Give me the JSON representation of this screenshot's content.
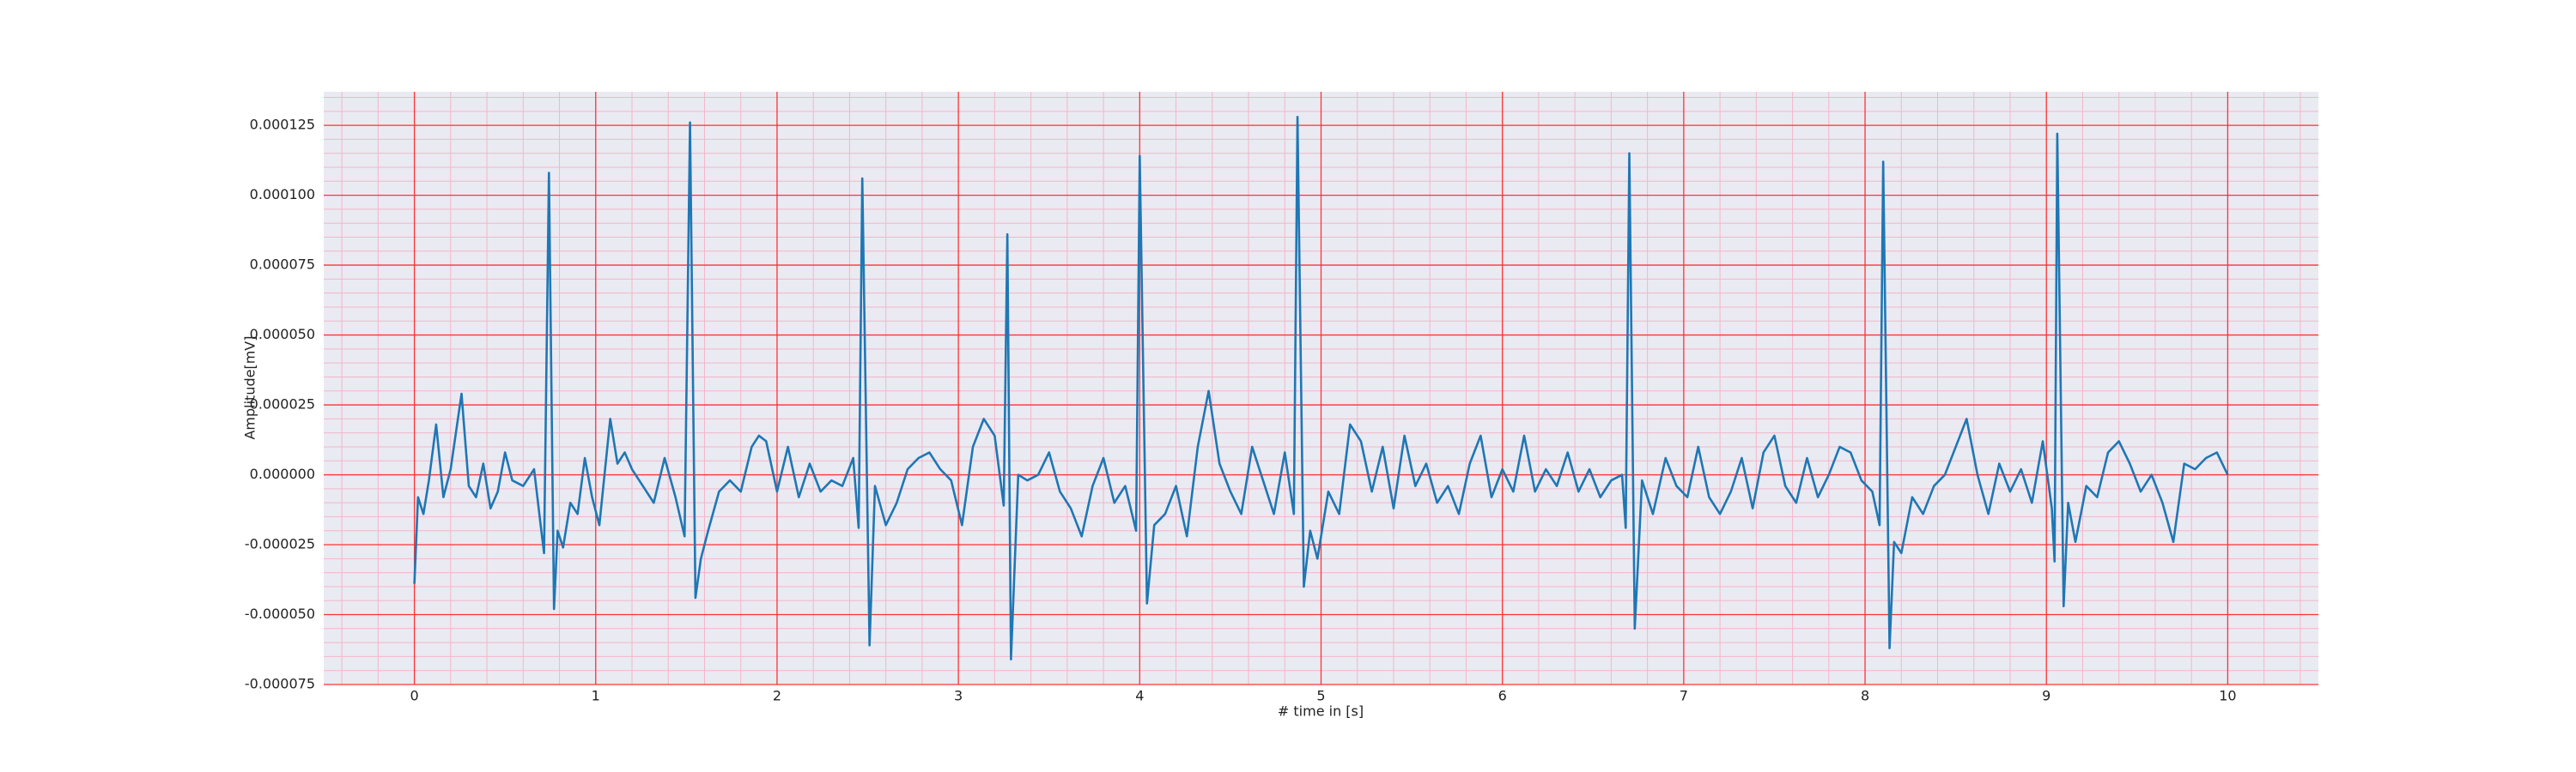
{
  "chart_data": {
    "type": "line",
    "xlabel": "# time in [s]",
    "ylabel": "Amplitude[mV]",
    "xlim": [
      -0.5,
      10.5
    ],
    "ylim": [
      -7.5e-05,
      0.000137
    ],
    "xticks": [
      0,
      1,
      2,
      3,
      4,
      5,
      6,
      7,
      8,
      9,
      10
    ],
    "yticks": [
      {
        "value": -7.5e-05,
        "label": "-0.000075"
      },
      {
        "value": -5e-05,
        "label": "-0.000050"
      },
      {
        "value": -2.5e-05,
        "label": "-0.000025"
      },
      {
        "value": 0,
        "label": "0.000000"
      },
      {
        "value": 2.5e-05,
        "label": "0.000025"
      },
      {
        "value": 5e-05,
        "label": "0.000050"
      },
      {
        "value": 7.5e-05,
        "label": "0.000075"
      },
      {
        "value": 0.0001,
        "label": "0.000100"
      },
      {
        "value": 0.000125,
        "label": "0.000125"
      }
    ],
    "xminorticks": [
      -0.4,
      -0.2,
      0.2,
      0.4,
      0.6,
      0.8,
      1.2,
      1.4,
      1.6,
      1.8,
      2.2,
      2.4,
      2.6,
      2.8,
      3.2,
      3.4,
      3.6,
      3.8,
      4.2,
      4.4,
      4.6,
      4.8,
      5.2,
      5.4,
      5.6,
      5.8,
      6.2,
      6.4,
      6.6,
      6.8,
      7.2,
      7.4,
      7.6,
      7.8,
      8.2,
      8.4,
      8.6,
      8.8,
      9.2,
      9.4,
      9.6,
      9.8,
      10.2,
      10.4
    ],
    "yminorticks": [
      -7e-05,
      -6.5e-05,
      -6e-05,
      -5.5e-05,
      -4.5e-05,
      -4e-05,
      -3.5e-05,
      -3e-05,
      -2e-05,
      -1.5e-05,
      -1e-05,
      -5e-06,
      5e-06,
      1e-05,
      1.5e-05,
      2e-05,
      3e-05,
      3.5e-05,
      4e-05,
      4.5e-05,
      5.5e-05,
      6e-05,
      6.5e-05,
      7e-05,
      8e-05,
      8.5e-05,
      9e-05,
      9.5e-05,
      0.000105,
      0.00011,
      0.000115,
      0.00012,
      0.00013,
      0.000135
    ],
    "grid": true,
    "major_grid_color": "#ff3333",
    "minor_grid_color": "#f4b6c8",
    "background": "#eaeaf2",
    "series": [
      {
        "color": "#1f77b4",
        "x": [
          0,
          0.02,
          0.05,
          0.08,
          0.12,
          0.16,
          0.2,
          0.26,
          0.3,
          0.34,
          0.38,
          0.42,
          0.46,
          0.5,
          0.54,
          0.6,
          0.66,
          0.7,
          0.715,
          0.742,
          0.77,
          0.79,
          0.82,
          0.86,
          0.9,
          0.94,
          0.98,
          1.02,
          1.08,
          1.12,
          1.16,
          1.2,
          1.26,
          1.32,
          1.38,
          1.44,
          1.49,
          1.52,
          1.55,
          1.58,
          1.62,
          1.68,
          1.74,
          1.8,
          1.86,
          1.9,
          1.94,
          2,
          2.06,
          2.12,
          2.18,
          2.24,
          2.3,
          2.36,
          2.42,
          2.45,
          2.47,
          2.51,
          2.54,
          2.6,
          2.66,
          2.72,
          2.78,
          2.84,
          2.9,
          2.96,
          3.02,
          3.08,
          3.14,
          3.2,
          3.25,
          3.27,
          3.29,
          3.33,
          3.38,
          3.44,
          3.5,
          3.56,
          3.62,
          3.68,
          3.74,
          3.8,
          3.86,
          3.92,
          3.98,
          4,
          4.04,
          4.08,
          4.14,
          4.2,
          4.26,
          4.32,
          4.38,
          4.44,
          4.5,
          4.56,
          4.62,
          4.68,
          4.74,
          4.8,
          4.85,
          4.87,
          4.905,
          4.94,
          4.98,
          5.04,
          5.1,
          5.16,
          5.22,
          5.28,
          5.34,
          5.4,
          5.46,
          5.52,
          5.58,
          5.64,
          5.7,
          5.76,
          5.82,
          5.88,
          5.94,
          6,
          6.06,
          6.12,
          6.18,
          6.24,
          6.3,
          6.36,
          6.42,
          6.48,
          6.54,
          6.6,
          6.66,
          6.68,
          6.7,
          6.73,
          6.77,
          6.83,
          6.9,
          6.96,
          7.02,
          7.08,
          7.14,
          7.2,
          7.26,
          7.32,
          7.38,
          7.44,
          7.5,
          7.56,
          7.62,
          7.68,
          7.74,
          7.8,
          7.86,
          7.92,
          7.98,
          8.04,
          8.08,
          8.1,
          8.135,
          8.16,
          8.2,
          8.26,
          8.32,
          8.38,
          8.44,
          8.5,
          8.56,
          8.62,
          8.68,
          8.74,
          8.8,
          8.86,
          8.92,
          8.98,
          9.03,
          9.045,
          9.06,
          9.095,
          9.12,
          9.16,
          9.22,
          9.28,
          9.34,
          9.4,
          9.46,
          9.52,
          9.58,
          9.64,
          9.7,
          9.76,
          9.82,
          9.88,
          9.94,
          10
        ],
        "values": [
          -3.9e-05,
          -8e-06,
          -1.4e-05,
          -2e-06,
          1.8e-05,
          -8e-06,
          2e-06,
          2.9e-05,
          -4e-06,
          -8e-06,
          4e-06,
          -1.2e-05,
          -6e-06,
          8e-06,
          -2e-06,
          -4e-06,
          2e-06,
          -2e-05,
          -2.8e-05,
          0.000108,
          -4.8e-05,
          -2e-05,
          -2.6e-05,
          -1e-05,
          -1.4e-05,
          6e-06,
          -8e-06,
          -1.8e-05,
          2e-05,
          4e-06,
          8e-06,
          2e-06,
          -4e-06,
          -1e-05,
          6e-06,
          -8e-06,
          -2.2e-05,
          0.000126,
          -4.4e-05,
          -3e-05,
          -2e-05,
          -6e-06,
          -2e-06,
          -6e-06,
          1e-05,
          1.4e-05,
          1.2e-05,
          -6e-06,
          1e-05,
          -8e-06,
          4e-06,
          -6e-06,
          -2e-06,
          -4e-06,
          6e-06,
          -1.9e-05,
          0.000106,
          -6.1e-05,
          -4e-06,
          -1.8e-05,
          -1e-05,
          2e-06,
          6e-06,
          8e-06,
          2e-06,
          -2e-06,
          -1.8e-05,
          1e-05,
          2e-05,
          1.4e-05,
          -1.1e-05,
          8.6e-05,
          -6.6e-05,
          0,
          -2e-06,
          0,
          8e-06,
          -6e-06,
          -1.2e-05,
          -2.2e-05,
          -4e-06,
          6e-06,
          -1e-05,
          -4e-06,
          -2e-05,
          0.000114,
          -4.6e-05,
          -1.8e-05,
          -1.4e-05,
          -4e-06,
          -2.2e-05,
          1e-05,
          3e-05,
          4e-06,
          -6e-06,
          -1.4e-05,
          1e-05,
          -2e-06,
          -1.4e-05,
          8e-06,
          -1.4e-05,
          0.000128,
          -4e-05,
          -2e-05,
          -3e-05,
          -6e-06,
          -1.4e-05,
          1.8e-05,
          1.2e-05,
          -6e-06,
          1e-05,
          -1.2e-05,
          1.4e-05,
          -4e-06,
          4e-06,
          -1e-05,
          -4e-06,
          -1.4e-05,
          4e-06,
          1.4e-05,
          -8e-06,
          2e-06,
          -6e-06,
          1.4e-05,
          -6e-06,
          2e-06,
          -4e-06,
          8e-06,
          -6e-06,
          2e-06,
          -8e-06,
          -2e-06,
          0,
          -1.9e-05,
          0.000115,
          -5.5e-05,
          -2e-06,
          -1.4e-05,
          6e-06,
          -4e-06,
          -8e-06,
          1e-05,
          -8e-06,
          -1.4e-05,
          -6e-06,
          6e-06,
          -1.2e-05,
          8e-06,
          1.4e-05,
          -4e-06,
          -1e-05,
          6e-06,
          -8e-06,
          0,
          1e-05,
          8e-06,
          -2e-06,
          -6e-06,
          -1.8e-05,
          0.000112,
          -6.2e-05,
          -2.4e-05,
          -2.8e-05,
          -8e-06,
          -1.4e-05,
          -4e-06,
          0,
          1e-05,
          2e-05,
          0,
          -1.4e-05,
          4e-06,
          -6e-06,
          2e-06,
          -1e-05,
          1.2e-05,
          -1.2e-05,
          -3.1e-05,
          0.000122,
          -4.7e-05,
          -1e-05,
          -2.4e-05,
          -4e-06,
          -8e-06,
          8e-06,
          1.2e-05,
          4e-06,
          -6e-06,
          0,
          -1e-05,
          -2.4e-05,
          4e-06,
          2e-06,
          6e-06,
          8e-06,
          0
        ]
      }
    ]
  }
}
